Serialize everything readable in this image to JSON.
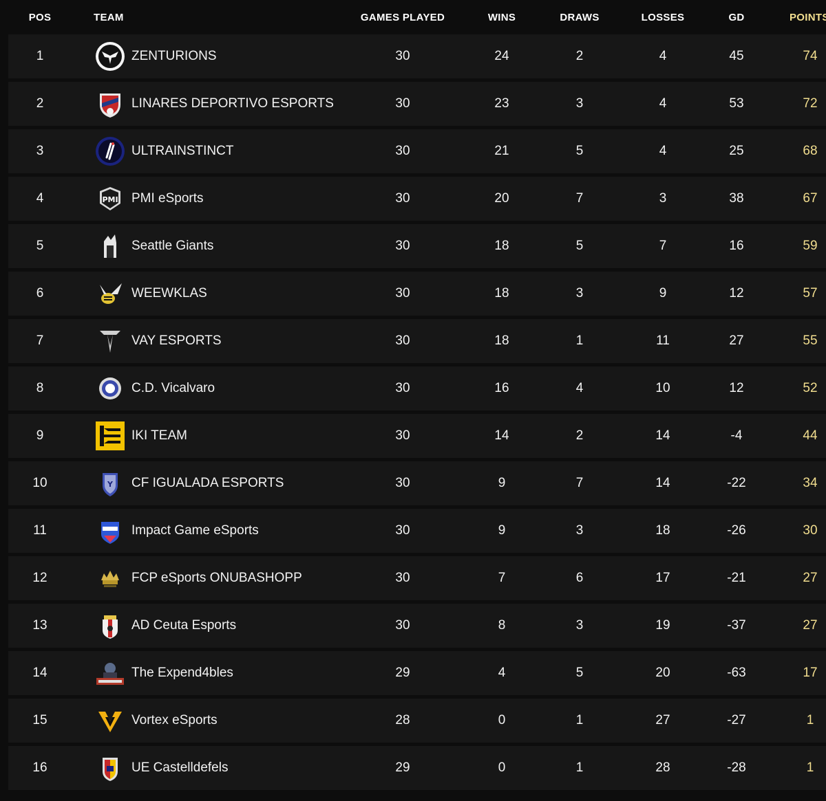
{
  "columns": {
    "pos": "POS",
    "team": "TEAM",
    "games_played": "GAMES PLAYED",
    "wins": "WINS",
    "draws": "DRAWS",
    "losses": "LOSSES",
    "gd": "GD",
    "points": "POINTS"
  },
  "colors": {
    "background": "#0d0d0d",
    "row": "#171717",
    "points": "#f2de8f",
    "text": "#f2f2f2"
  },
  "rows": [
    {
      "pos": "1",
      "team": "ZENTURIONS",
      "logo": "zenturions-logo",
      "gp": "30",
      "w": "24",
      "d": "2",
      "l": "4",
      "gd": "45",
      "pts": "74"
    },
    {
      "pos": "2",
      "team": "LINARES DEPORTIVO ESPORTS",
      "logo": "linares-logo",
      "gp": "30",
      "w": "23",
      "d": "3",
      "l": "4",
      "gd": "53",
      "pts": "72"
    },
    {
      "pos": "3",
      "team": "ULTRAINSTINCT",
      "logo": "ultrainstinct-logo",
      "gp": "30",
      "w": "21",
      "d": "5",
      "l": "4",
      "gd": "25",
      "pts": "68"
    },
    {
      "pos": "4",
      "team": "PMI eSports",
      "logo": "pmi-logo",
      "gp": "30",
      "w": "20",
      "d": "7",
      "l": "3",
      "gd": "38",
      "pts": "67"
    },
    {
      "pos": "5",
      "team": "Seattle Giants",
      "logo": "seattle-giants-logo",
      "gp": "30",
      "w": "18",
      "d": "5",
      "l": "7",
      "gd": "16",
      "pts": "59"
    },
    {
      "pos": "6",
      "team": "WEEWKLAS",
      "logo": "weewklas-logo",
      "gp": "30",
      "w": "18",
      "d": "3",
      "l": "9",
      "gd": "12",
      "pts": "57"
    },
    {
      "pos": "7",
      "team": "VAY ESPORTS",
      "logo": "vay-logo",
      "gp": "30",
      "w": "18",
      "d": "1",
      "l": "11",
      "gd": "27",
      "pts": "55"
    },
    {
      "pos": "8",
      "team": "C.D. Vicalvaro",
      "logo": "vicalvaro-logo",
      "gp": "30",
      "w": "16",
      "d": "4",
      "l": "10",
      "gd": "12",
      "pts": "52"
    },
    {
      "pos": "9",
      "team": "IKI TEAM",
      "logo": "iki-logo",
      "gp": "30",
      "w": "14",
      "d": "2",
      "l": "14",
      "gd": "-4",
      "pts": "44"
    },
    {
      "pos": "10",
      "team": "CF IGUALADA ESPORTS",
      "logo": "igualada-logo",
      "gp": "30",
      "w": "9",
      "d": "7",
      "l": "14",
      "gd": "-22",
      "pts": "34"
    },
    {
      "pos": "11",
      "team": "Impact Game eSports",
      "logo": "impact-logo",
      "gp": "30",
      "w": "9",
      "d": "3",
      "l": "18",
      "gd": "-26",
      "pts": "30"
    },
    {
      "pos": "12",
      "team": "FCP eSports ONUBASHOPP",
      "logo": "fcp-logo",
      "gp": "30",
      "w": "7",
      "d": "6",
      "l": "17",
      "gd": "-21",
      "pts": "27"
    },
    {
      "pos": "13",
      "team": "AD Ceuta Esports",
      "logo": "ceuta-logo",
      "gp": "30",
      "w": "8",
      "d": "3",
      "l": "19",
      "gd": "-37",
      "pts": "27"
    },
    {
      "pos": "14",
      "team": "The Expend4bles",
      "logo": "expend4bles-logo",
      "gp": "29",
      "w": "4",
      "d": "5",
      "l": "20",
      "gd": "-63",
      "pts": "17"
    },
    {
      "pos": "15",
      "team": "Vortex eSports",
      "logo": "vortex-logo",
      "gp": "28",
      "w": "0",
      "d": "1",
      "l": "27",
      "gd": "-27",
      "pts": "1"
    },
    {
      "pos": "16",
      "team": "UE Castelldefels",
      "logo": "castelldefels-logo",
      "gp": "29",
      "w": "0",
      "d": "1",
      "l": "28",
      "gd": "-28",
      "pts": "1"
    }
  ]
}
